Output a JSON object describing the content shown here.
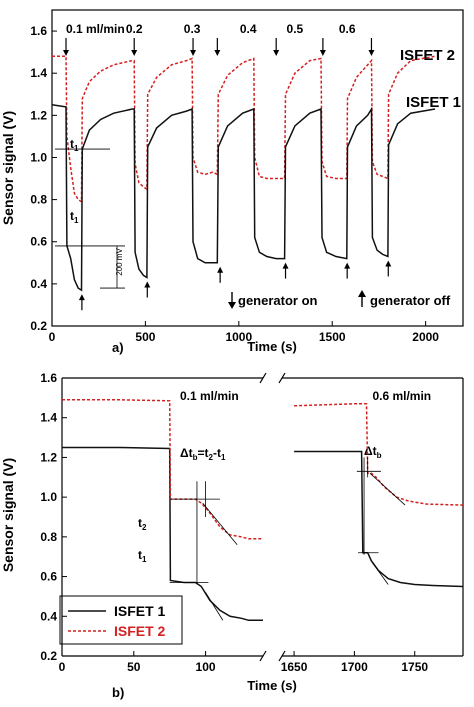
{
  "figure": {
    "panel_a_label": "a)",
    "panel_b_label": "b)",
    "colors": {
      "isfet1": "#111111",
      "isfet2": "#d42020",
      "axis": "#000000"
    }
  },
  "chart_data": [
    {
      "type": "line",
      "panel": "a)",
      "title": "",
      "xlabel": "Time (s)",
      "ylabel": "Sensor signal (V)",
      "xlim": [
        0,
        2200
      ],
      "ylim": [
        0.2,
        1.7
      ],
      "xticks": [
        0,
        500,
        1000,
        1500,
        2000
      ],
      "yticks": [
        0.2,
        0.4,
        0.6,
        0.8,
        1.0,
        1.2,
        1.4,
        1.6
      ],
      "grid": false,
      "flow_labels": [
        {
          "text": "0.1 ml/min",
          "x": 75
        },
        {
          "text": "0.2",
          "x": 440
        },
        {
          "text": "0.3",
          "x": 750
        },
        {
          "text": "0.4",
          "x": 1050
        },
        {
          "text": "0.5",
          "x": 1300
        },
        {
          "text": "0.6",
          "x": 1580
        }
      ],
      "generator_on": [
        75,
        440,
        755,
        885,
        1200,
        1450,
        1710
      ],
      "generator_off": [
        160,
        510,
        510,
        900,
        1250,
        1580,
        1800
      ],
      "annotations": {
        "generator_on": "generator on",
        "generator_off": "generator off",
        "t1": "t",
        "t1_sub": "1",
        "scale_bar": "200 mV"
      },
      "series": [
        {
          "name": "ISFET 2",
          "style": "dashed",
          "points": [
            [
              0,
              1.48
            ],
            [
              75,
              1.48
            ],
            [
              80,
              1.1
            ],
            [
              100,
              0.95
            ],
            [
              120,
              0.83
            ],
            [
              140,
              0.8
            ],
            [
              158,
              0.79
            ],
            [
              162,
              1.28
            ],
            [
              200,
              1.36
            ],
            [
              260,
              1.41
            ],
            [
              330,
              1.44
            ],
            [
              430,
              1.46
            ],
            [
              440,
              1.46
            ],
            [
              445,
              0.97
            ],
            [
              465,
              0.88
            ],
            [
              490,
              0.86
            ],
            [
              508,
              0.85
            ],
            [
              512,
              1.3
            ],
            [
              560,
              1.38
            ],
            [
              640,
              1.44
            ],
            [
              720,
              1.46
            ],
            [
              750,
              1.47
            ],
            [
              755,
              1.0
            ],
            [
              780,
              0.93
            ],
            [
              820,
              0.92
            ],
            [
              860,
              0.93
            ],
            [
              885,
              0.92
            ],
            [
              890,
              1.3
            ],
            [
              940,
              1.39
            ],
            [
              1020,
              1.45
            ],
            [
              1080,
              1.47
            ],
            [
              1085,
              1.0
            ],
            [
              1110,
              0.91
            ],
            [
              1150,
              0.9
            ],
            [
              1200,
              0.9
            ],
            [
              1245,
              0.9
            ],
            [
              1250,
              1.3
            ],
            [
              1300,
              1.4
            ],
            [
              1380,
              1.46
            ],
            [
              1440,
              1.47
            ],
            [
              1445,
              0.98
            ],
            [
              1470,
              0.91
            ],
            [
              1520,
              0.9
            ],
            [
              1578,
              0.9
            ],
            [
              1582,
              1.28
            ],
            [
              1630,
              1.38
            ],
            [
              1690,
              1.44
            ],
            [
              1710,
              1.46
            ],
            [
              1715,
              0.98
            ],
            [
              1740,
              0.92
            ],
            [
              1770,
              0.91
            ],
            [
              1798,
              0.9
            ],
            [
              1802,
              1.3
            ],
            [
              1850,
              1.4
            ],
            [
              1920,
              1.46
            ],
            [
              2050,
              1.48
            ]
          ]
        },
        {
          "name": "ISFET 1",
          "style": "solid",
          "points": [
            [
              0,
              1.25
            ],
            [
              75,
              1.24
            ],
            [
              80,
              0.58
            ],
            [
              100,
              0.52
            ],
            [
              120,
              0.42
            ],
            [
              140,
              0.38
            ],
            [
              158,
              0.37
            ],
            [
              162,
              1.04
            ],
            [
              200,
              1.13
            ],
            [
              260,
              1.18
            ],
            [
              330,
              1.21
            ],
            [
              430,
              1.23
            ],
            [
              440,
              1.23
            ],
            [
              445,
              0.55
            ],
            [
              465,
              0.47
            ],
            [
              490,
              0.44
            ],
            [
              508,
              0.43
            ],
            [
              512,
              1.05
            ],
            [
              560,
              1.14
            ],
            [
              640,
              1.2
            ],
            [
              720,
              1.22
            ],
            [
              750,
              1.23
            ],
            [
              755,
              0.6
            ],
            [
              780,
              0.52
            ],
            [
              820,
              0.5
            ],
            [
              860,
              0.5
            ],
            [
              885,
              0.5
            ],
            [
              890,
              1.05
            ],
            [
              940,
              1.15
            ],
            [
              1020,
              1.21
            ],
            [
              1080,
              1.23
            ],
            [
              1085,
              0.62
            ],
            [
              1110,
              0.55
            ],
            [
              1150,
              0.53
            ],
            [
              1200,
              0.52
            ],
            [
              1245,
              0.52
            ],
            [
              1250,
              1.05
            ],
            [
              1300,
              1.15
            ],
            [
              1380,
              1.21
            ],
            [
              1440,
              1.23
            ],
            [
              1445,
              0.62
            ],
            [
              1470,
              0.55
            ],
            [
              1520,
              0.53
            ],
            [
              1578,
              0.52
            ],
            [
              1582,
              1.05
            ],
            [
              1630,
              1.15
            ],
            [
              1690,
              1.2
            ],
            [
              1710,
              1.23
            ],
            [
              1715,
              0.62
            ],
            [
              1740,
              0.56
            ],
            [
              1770,
              0.54
            ],
            [
              1798,
              0.53
            ],
            [
              1802,
              1.06
            ],
            [
              1850,
              1.16
            ],
            [
              1920,
              1.21
            ],
            [
              2050,
              1.23
            ]
          ]
        }
      ]
    },
    {
      "type": "line",
      "panel": "b)",
      "title": "",
      "xlabel": "Time (s)",
      "ylabel": "Sensor signal (V)",
      "ylim": [
        0.2,
        1.6
      ],
      "yticks": [
        0.2,
        0.4,
        0.6,
        0.8,
        1.0,
        1.2,
        1.4,
        1.6
      ],
      "grid": false,
      "axis_break": true,
      "x_segments": [
        {
          "xlim": [
            0,
            140
          ],
          "xticks": [
            0,
            50,
            100
          ]
        },
        {
          "xlim": [
            1640,
            1790
          ],
          "xticks": [
            1650,
            1700,
            1750
          ]
        }
      ],
      "flow_labels": [
        {
          "text": "0.1 ml/min",
          "segment": 0,
          "x": 78
        },
        {
          "text": "0.6 ml/min",
          "segment": 1,
          "x": 1710
        }
      ],
      "annotations": {
        "delta_t": "Δt",
        "delta_sub": "b",
        "eq1": "=t",
        "eq1_sub": "2",
        "eq2": "-t",
        "eq2_sub": "1",
        "t": "t",
        "t2_sub": "2",
        "t1_sub": "1"
      },
      "legend": {
        "position": "bottom-left"
      },
      "series": [
        {
          "name": "ISFET 1",
          "style": "solid",
          "segments": [
            [
              [
                0,
                1.25
              ],
              [
                40,
                1.25
              ],
              [
                75,
                1.245
              ],
              [
                75.5,
                0.58
              ],
              [
                85,
                0.57
              ],
              [
                93,
                0.57
              ],
              [
                97,
                0.55
              ],
              [
                103,
                0.48
              ],
              [
                110,
                0.43
              ],
              [
                117,
                0.4
              ],
              [
                125,
                0.39
              ],
              [
                130,
                0.38
              ],
              [
                140,
                0.38
              ]
            ],
            [
              [
                1650,
                1.23
              ],
              [
                1700,
                1.23
              ],
              [
                1706,
                1.23
              ],
              [
                1707,
                0.72
              ],
              [
                1711,
                0.72
              ],
              [
                1714,
                0.68
              ],
              [
                1720,
                0.63
              ],
              [
                1728,
                0.59
              ],
              [
                1738,
                0.57
              ],
              [
                1750,
                0.56
              ],
              [
                1765,
                0.555
              ],
              [
                1790,
                0.55
              ]
            ]
          ]
        },
        {
          "name": "ISFET 2",
          "style": "dashed",
          "segments": [
            [
              [
                0,
                1.49
              ],
              [
                40,
                1.49
              ],
              [
                75,
                1.485
              ],
              [
                75.5,
                0.99
              ],
              [
                85,
                0.99
              ],
              [
                93,
                0.99
              ],
              [
                97,
                0.97
              ],
              [
                102,
                0.93
              ],
              [
                110,
                0.85
              ],
              [
                117,
                0.81
              ],
              [
                125,
                0.8
              ],
              [
                130,
                0.79
              ],
              [
                140,
                0.79
              ]
            ],
            [
              [
                1650,
                1.46
              ],
              [
                1700,
                1.47
              ],
              [
                1710,
                1.47
              ],
              [
                1711,
                1.12
              ],
              [
                1714,
                1.12
              ],
              [
                1718,
                1.1
              ],
              [
                1725,
                1.05
              ],
              [
                1735,
                1.0
              ],
              [
                1745,
                0.98
              ],
              [
                1760,
                0.965
              ],
              [
                1790,
                0.96
              ]
            ]
          ]
        }
      ]
    }
  ]
}
